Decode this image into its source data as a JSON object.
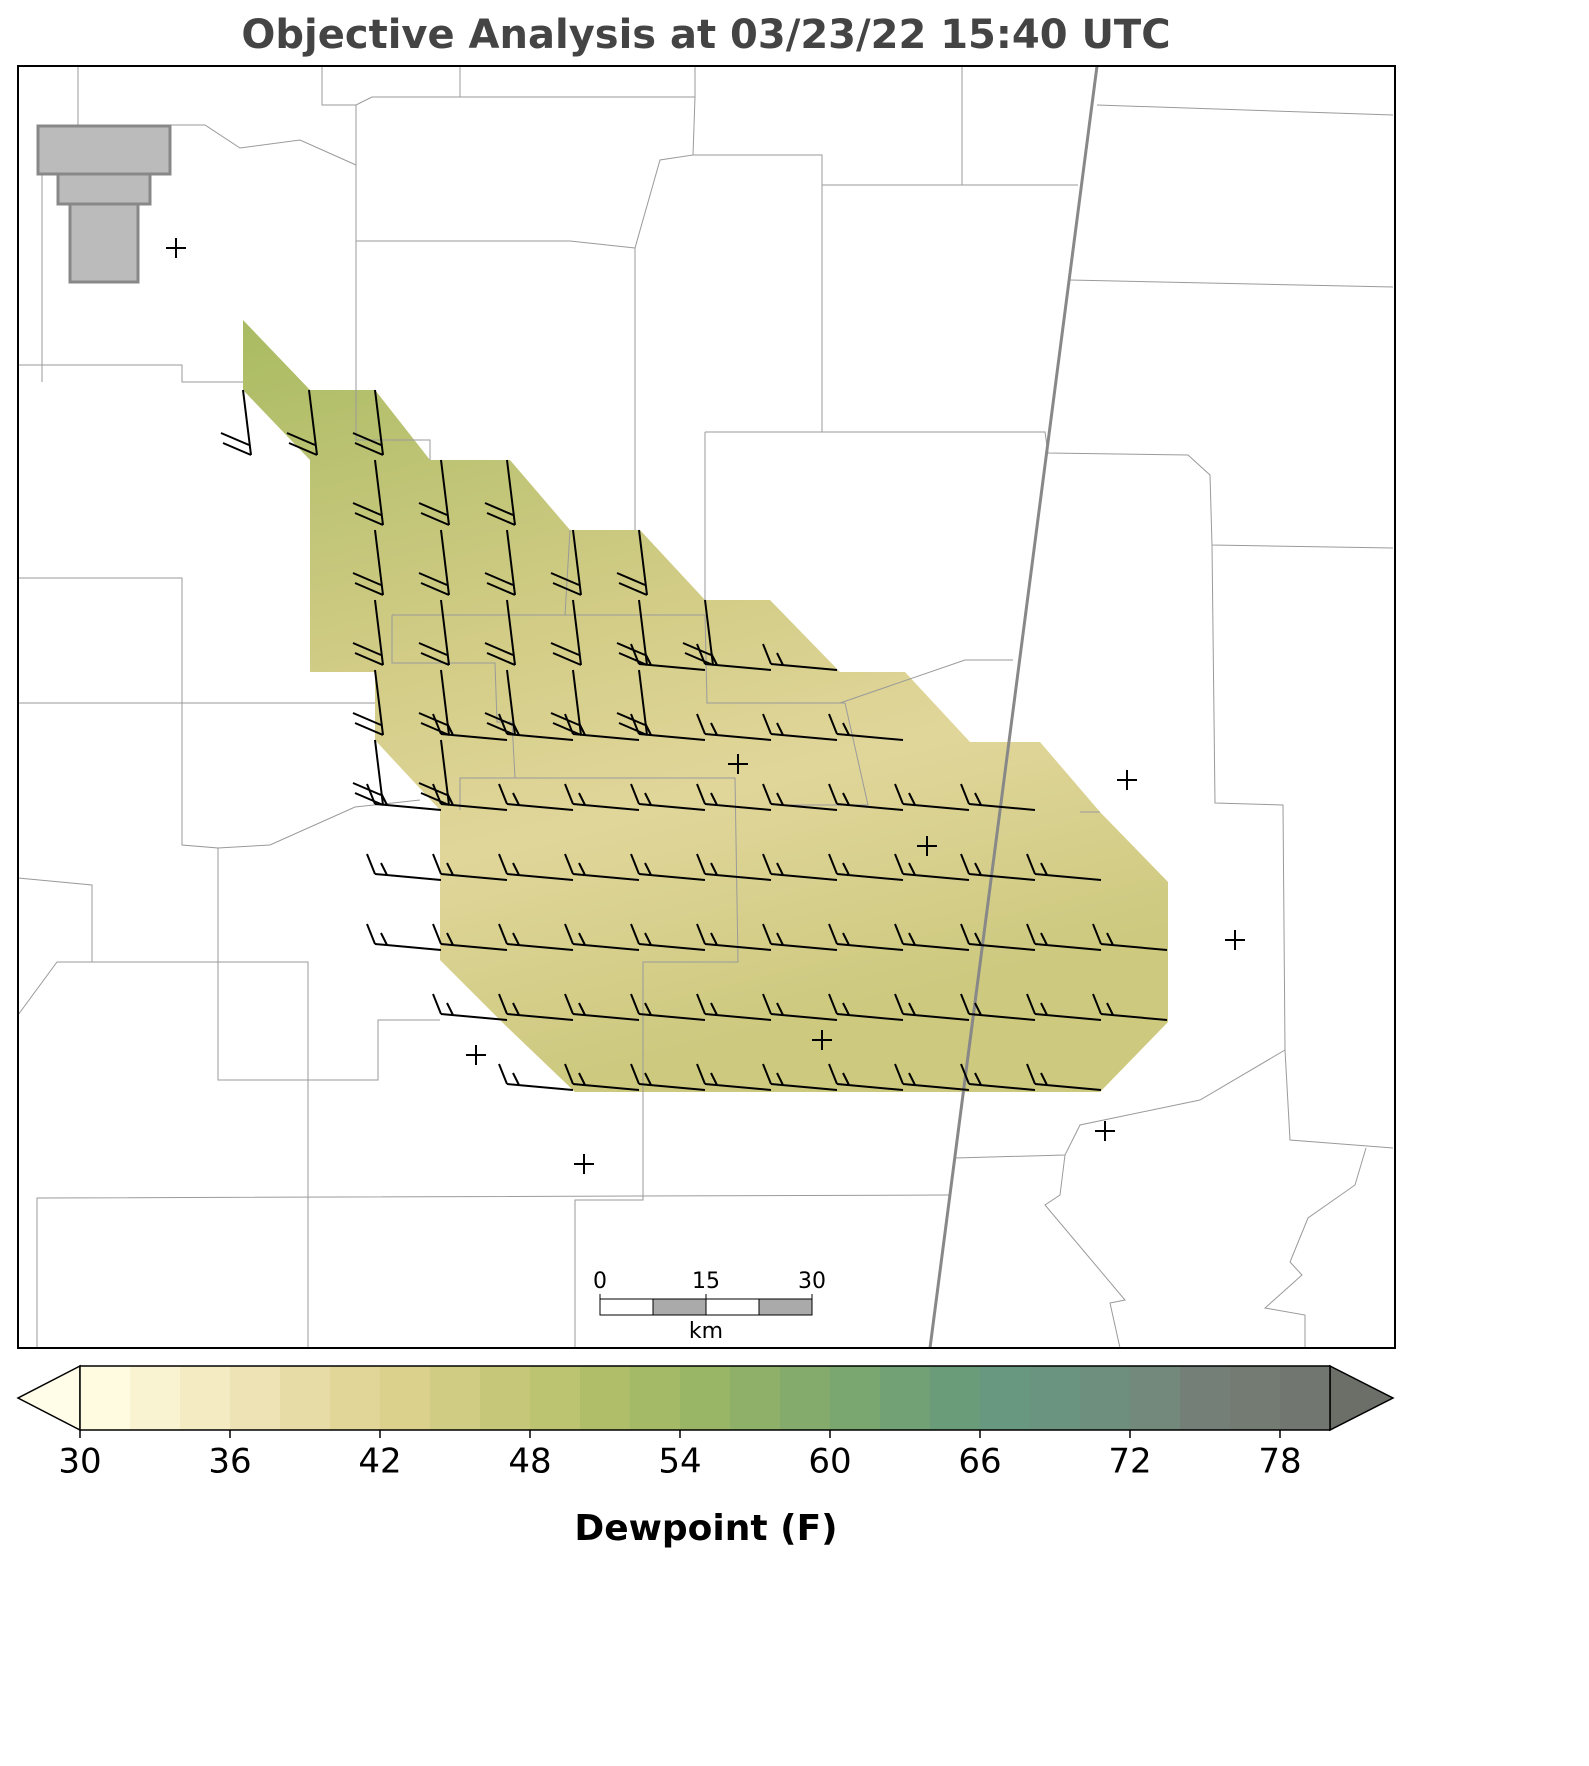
{
  "title": "Objective Analysis at 03/23/22 15:40 UTC",
  "colorbar": {
    "label": "Dewpoint (F)",
    "lim": [
      30,
      80
    ],
    "ticks": [
      30,
      36,
      42,
      48,
      54,
      60,
      66,
      72,
      78
    ],
    "colors": [
      "#fffbe0",
      "#faf3d2",
      "#f4ebc3",
      "#eee3b5",
      "#e8dca6",
      "#e2d598",
      "#dbd18d",
      "#d1cc83",
      "#c7c77a",
      "#bcc371",
      "#b0be6a",
      "#a5ba66",
      "#99b566",
      "#8eb068",
      "#84ab6c",
      "#7aa670",
      "#71a175",
      "#6a9c7a",
      "#689880",
      "#6a9480",
      "#6e8f7e",
      "#72897b",
      "#737f77",
      "#737b72",
      "#727670"
    ],
    "under_color": "#fffce8",
    "over_color": "#6b6f68"
  },
  "scale_bar": {
    "ticks": [
      0,
      15,
      30
    ],
    "unit": "km"
  }
}
